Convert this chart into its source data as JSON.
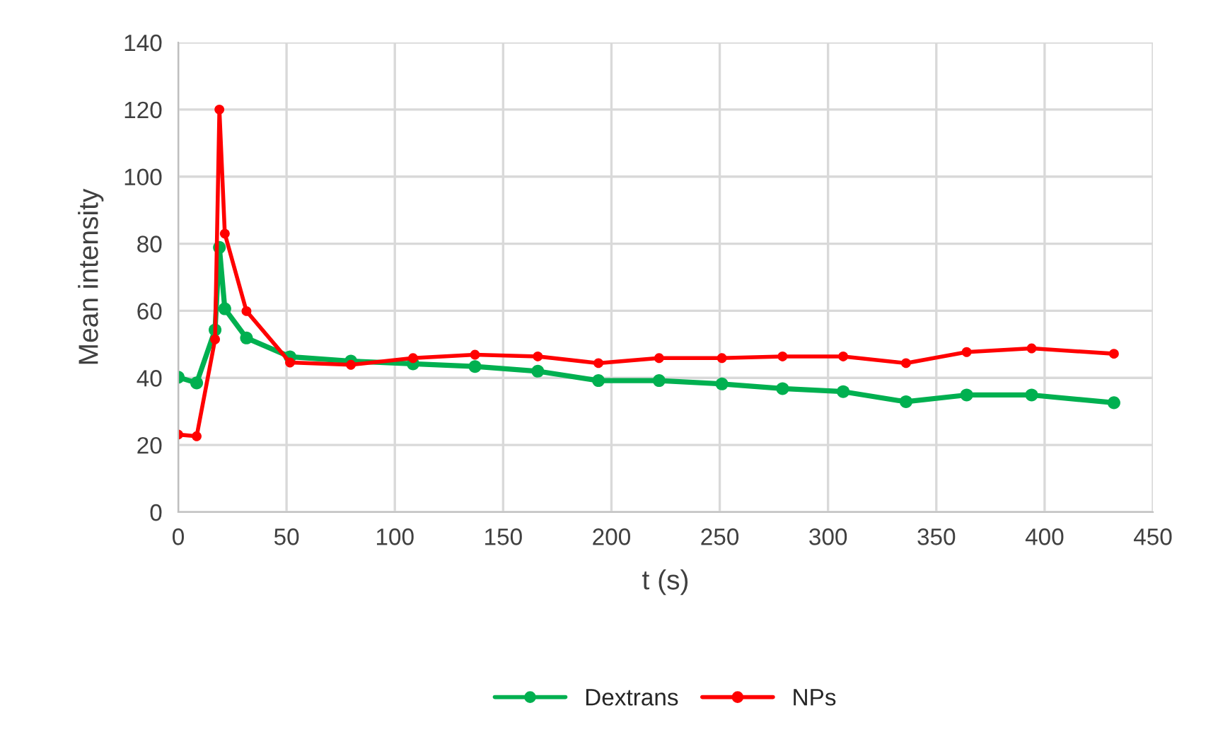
{
  "chart_data": {
    "type": "line",
    "xlabel": "t (s)",
    "ylabel": "Mean intensity",
    "xlim": [
      0,
      450
    ],
    "xticks": [
      0,
      50,
      100,
      150,
      200,
      250,
      300,
      350,
      400,
      450
    ],
    "ylim": [
      0,
      140
    ],
    "yticks": [
      0,
      20,
      40,
      60,
      80,
      100,
      120,
      140
    ],
    "grid": true,
    "legend": "bottom",
    "marker": "circle",
    "line_style": "solid",
    "series": [
      {
        "name": "Dextrans",
        "color": "#00b050",
        "x": [
          0,
          8.5,
          17,
          19,
          21.5,
          31.5,
          51.6,
          79.7,
          108.4,
          137,
          166,
          194,
          222,
          251,
          279,
          307,
          336,
          364,
          394,
          432
        ],
        "values": [
          40.2,
          38.5,
          54.3,
          78.9,
          60.6,
          51.9,
          46.3,
          45.0,
          44.2,
          43.4,
          42.0,
          39.2,
          39.2,
          38.2,
          36.8,
          35.9,
          32.9,
          34.9,
          34.9,
          32.6
        ]
      },
      {
        "name": "NPs",
        "color": "#ff0000",
        "x": [
          0,
          8.5,
          17,
          19,
          21.5,
          31.5,
          51.6,
          79.7,
          108.4,
          137,
          166,
          194,
          222,
          251,
          279,
          307,
          336,
          364,
          394,
          432
        ],
        "values": [
          23.1,
          22.6,
          51.5,
          120,
          83,
          59.9,
          44.6,
          43.9,
          45.9,
          46.9,
          46.4,
          44.4,
          45.9,
          45.9,
          46.4,
          46.4,
          44.4,
          47.7,
          48.8,
          47.2
        ]
      }
    ]
  }
}
